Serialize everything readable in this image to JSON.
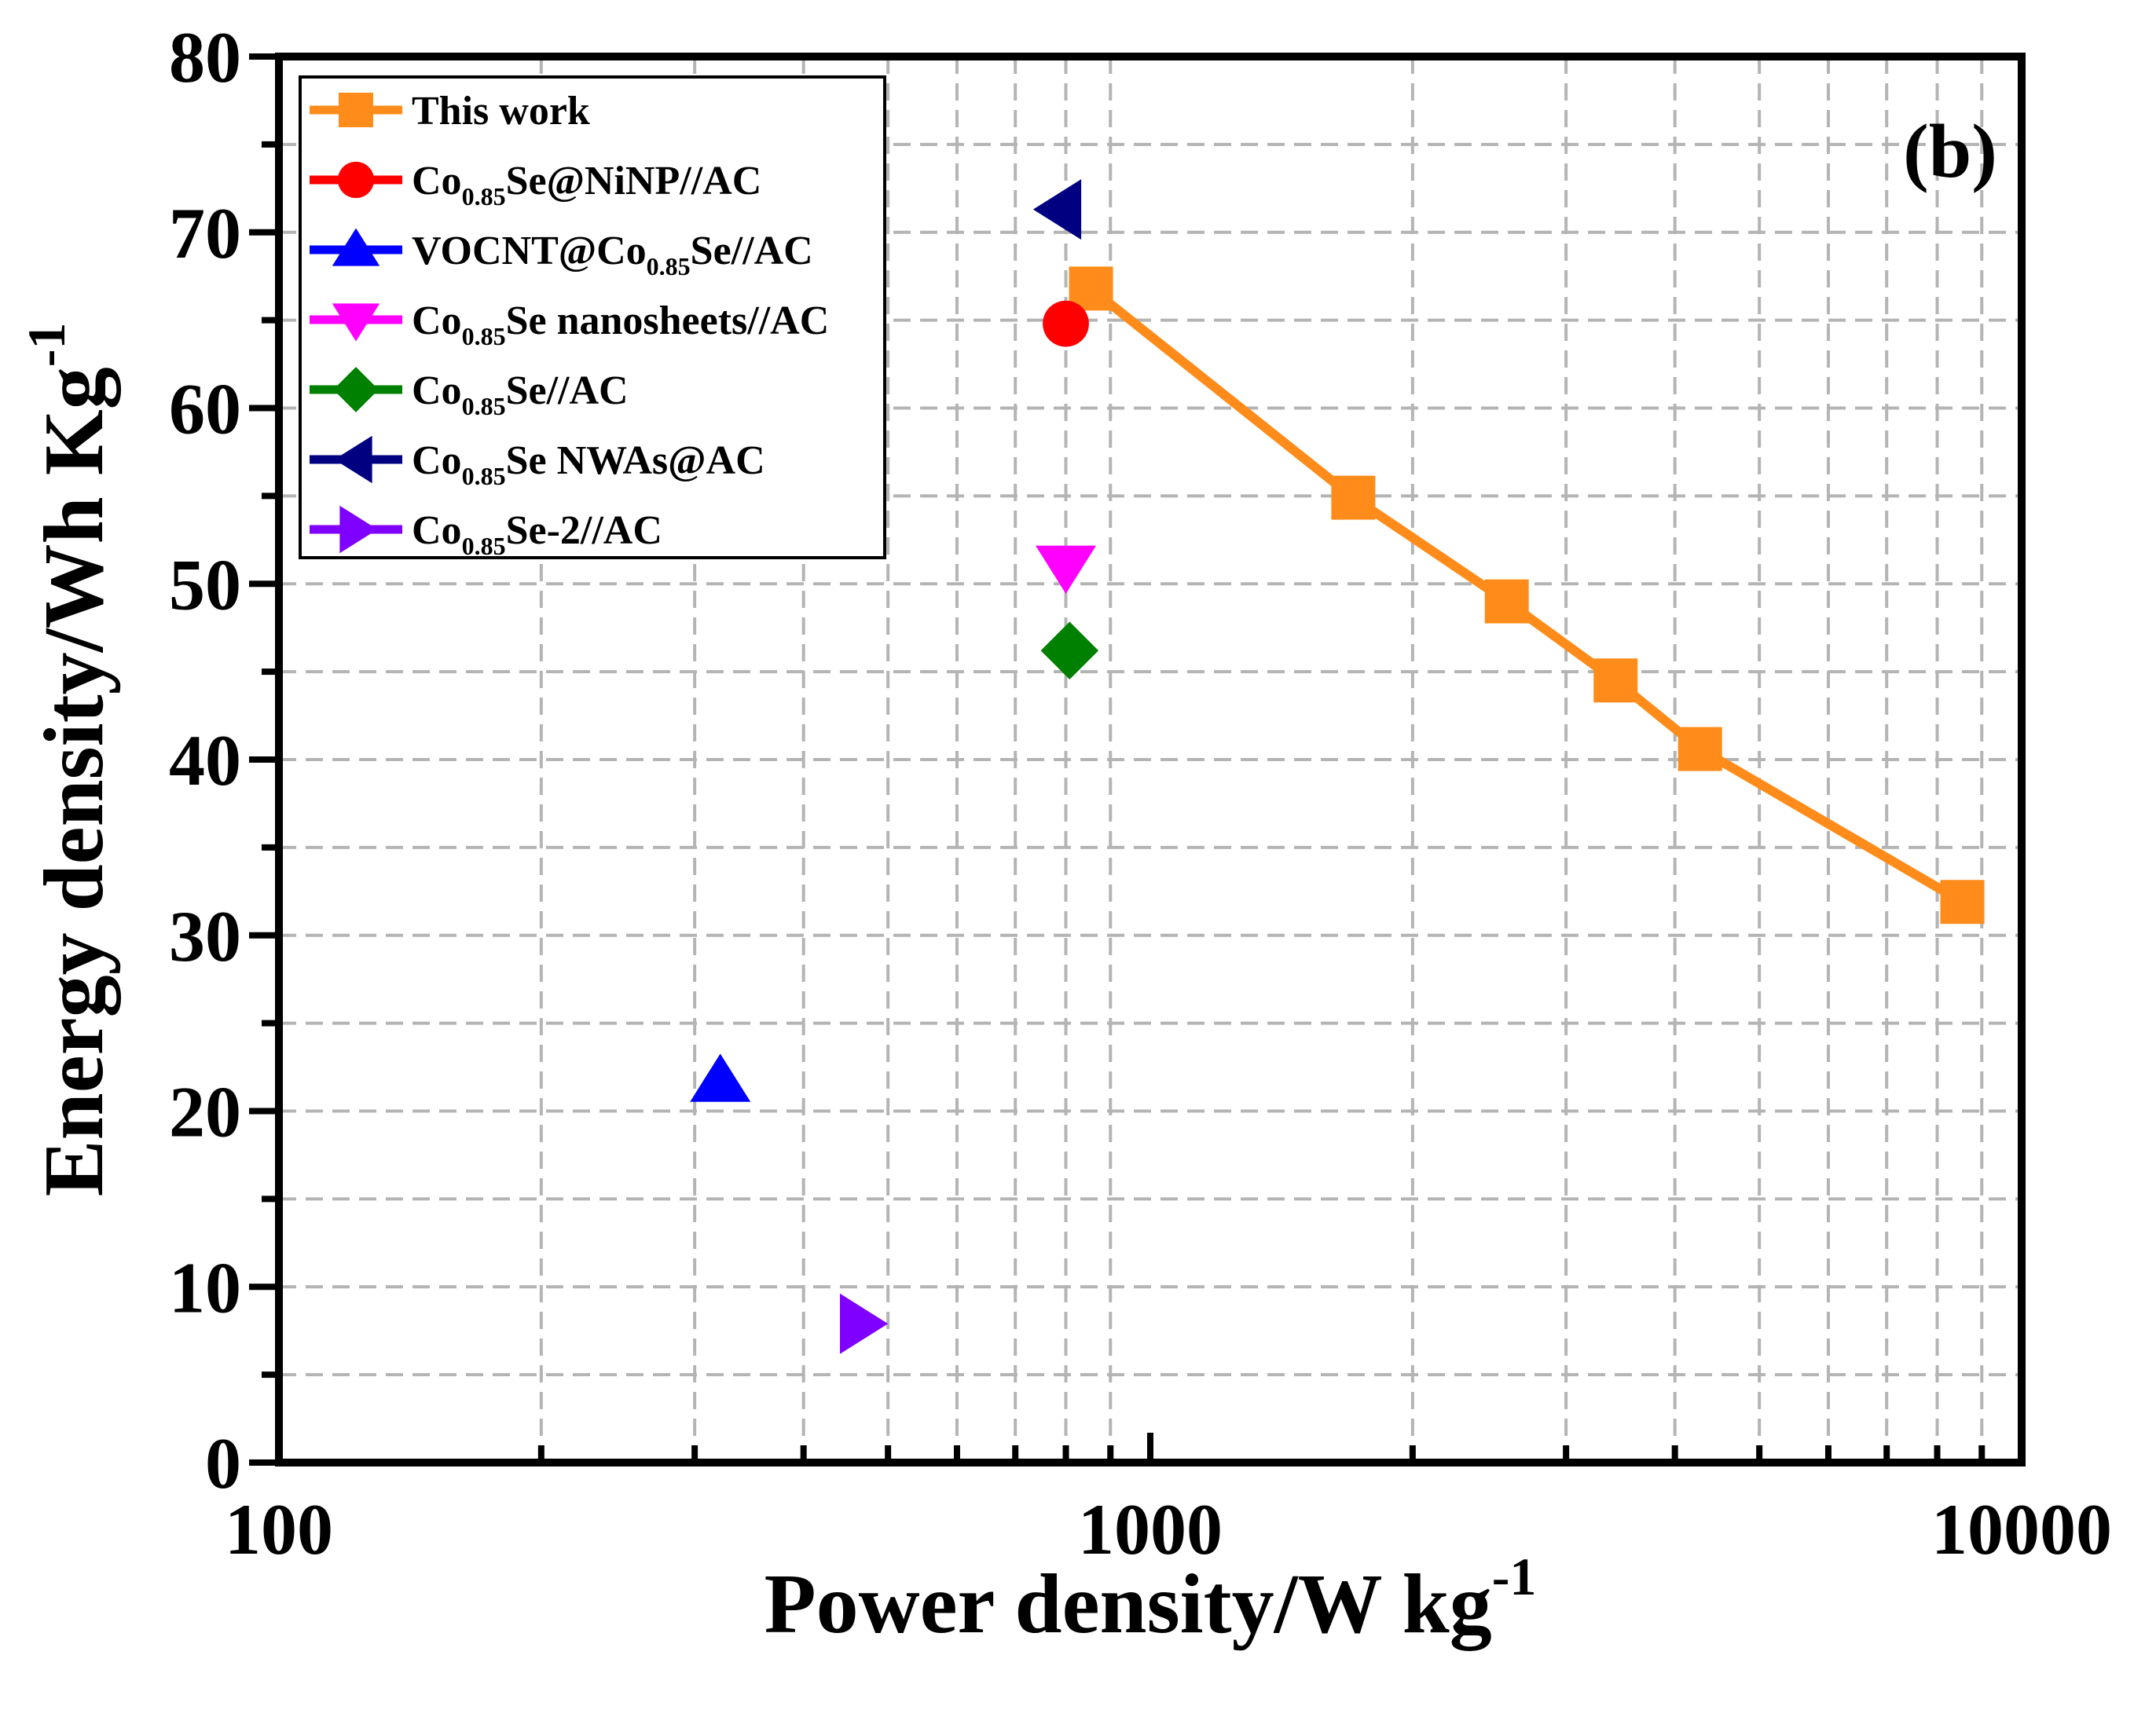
{
  "chart_data": {
    "type": "scatter",
    "panel_label": "(b)",
    "xlabel": "Power density/W kg",
    "xlabel_sup": "-1",
    "ylabel": "Energy density/Wh Kg",
    "ylabel_sup": "-1",
    "x_scale": "log",
    "xlim": [
      100,
      10000
    ],
    "ylim": [
      0,
      80
    ],
    "x_ticks": [
      {
        "value": 100,
        "label": "100"
      },
      {
        "value": 1000,
        "label": "1000"
      },
      {
        "value": 10000,
        "label": "10000"
      }
    ],
    "y_ticks": [
      {
        "value": 0,
        "label": "0"
      },
      {
        "value": 10,
        "label": "10"
      },
      {
        "value": 20,
        "label": "20"
      },
      {
        "value": 30,
        "label": "30"
      },
      {
        "value": 40,
        "label": "40"
      },
      {
        "value": 50,
        "label": "50"
      },
      {
        "value": 60,
        "label": "60"
      },
      {
        "value": 70,
        "label": "70"
      },
      {
        "value": 80,
        "label": "80"
      }
    ],
    "grid": true,
    "legend_position": "top-left",
    "series": [
      {
        "name": "This work",
        "name_parts": [
          "This work"
        ],
        "marker": "square",
        "color": "#ff8c1a",
        "line": true,
        "x": [
          855,
          1710,
          2565,
          3420,
          4275,
          8550
        ],
        "y": [
          66.8,
          54.9,
          49.0,
          44.5,
          40.6,
          31.9
        ]
      },
      {
        "name": "Co0.85Se@NiNP//AC",
        "name_parts": [
          "Co",
          "0.85",
          "Se@NiNP//AC"
        ],
        "marker": "circle",
        "color": "#ff0000",
        "line": false,
        "x": [
          800
        ],
        "y": [
          64.8
        ]
      },
      {
        "name": "VOCNT@Co0.85Se//AC",
        "name_parts": [
          "VOCNT@Co",
          "0.85",
          "Se//AC"
        ],
        "marker": "triangle-up",
        "color": "#0000ff",
        "line": false,
        "x": [
          321
        ],
        "y": [
          21.7
        ]
      },
      {
        "name": "Co0.85Se nanosheets//AC",
        "name_parts": [
          "Co",
          "0.85",
          "Se nanosheets//AC"
        ],
        "marker": "triangle-down",
        "color": "#ff00ff",
        "line": false,
        "x": [
          800
        ],
        "y": [
          51.0
        ]
      },
      {
        "name": "Co0.85Se//AC",
        "name_parts": [
          "Co",
          "0.85",
          "Se//AC"
        ],
        "marker": "diamond",
        "color": "#008000",
        "line": false,
        "x": [
          808
        ],
        "y": [
          46.2
        ]
      },
      {
        "name": "Co0.85Se NWAs@AC",
        "name_parts": [
          "Co",
          "0.85",
          "Se NWAs@AC"
        ],
        "marker": "triangle-left",
        "color": "#000080",
        "line": false,
        "x": [
          789
        ],
        "y": [
          71.3
        ]
      },
      {
        "name": "Co0.85Se-2//AC",
        "name_parts": [
          "Co",
          "0.85",
          "Se-2//AC"
        ],
        "marker": "triangle-right",
        "color": "#8000ff",
        "line": false,
        "x": [
          465
        ],
        "y": [
          7.9
        ]
      }
    ]
  }
}
